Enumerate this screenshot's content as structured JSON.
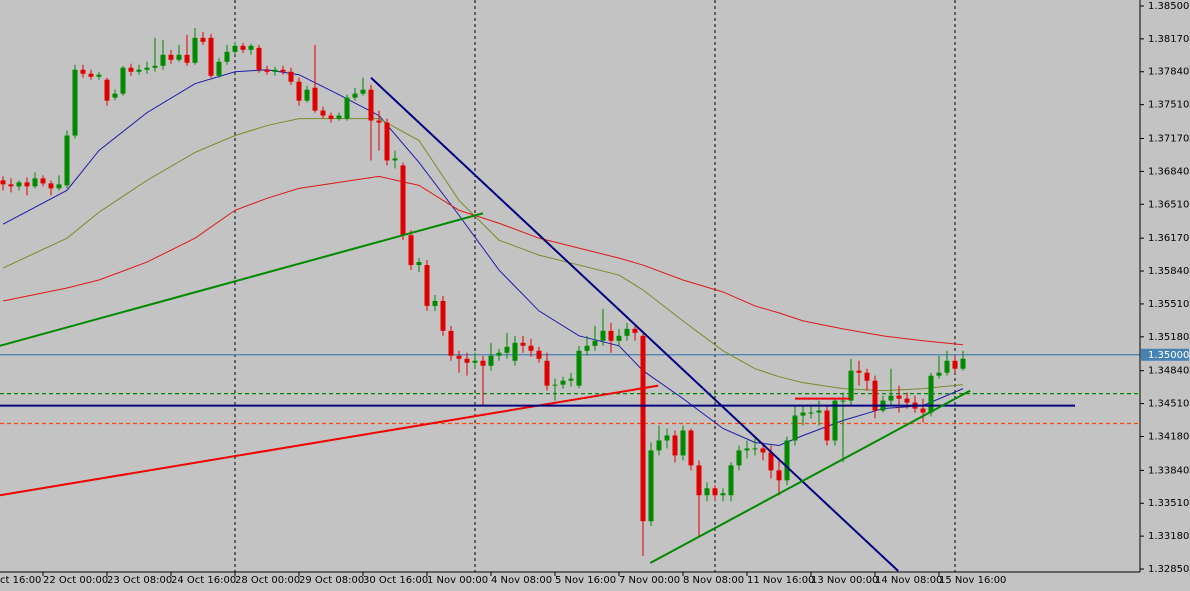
{
  "chart_data": {
    "type": "candlestick",
    "up_color": "#008a00",
    "down_color": "#e00000",
    "grid": false,
    "categories": [
      "ct 16:00",
      null,
      null,
      null,
      null,
      null,
      null,
      null,
      "22 Oct 00:00",
      null,
      null,
      null,
      null,
      null,
      null,
      null,
      "23 Oct 08:00",
      null,
      null,
      null,
      null,
      null,
      null,
      null,
      "24 Oct 16:00",
      null,
      null,
      null,
      null,
      null,
      null,
      null,
      "28 Oct 00:00",
      null,
      null,
      null,
      null,
      null,
      null,
      null,
      "29 Oct 08:00",
      null,
      null,
      null,
      null,
      null,
      null,
      null,
      "30 Oct 16:00",
      null,
      null,
      null,
      null,
      null,
      null,
      null,
      "1 Nov 00:00",
      null,
      null,
      null,
      null,
      null,
      null,
      null,
      "4 Nov 08:00",
      null,
      null,
      null,
      null,
      null,
      null,
      null,
      "5 Nov 16:00",
      null,
      null,
      null,
      null,
      null,
      null,
      null,
      "7 Nov 00:00",
      null,
      null,
      null,
      null,
      null,
      null,
      null,
      "8 Nov 08:00",
      null,
      null,
      null,
      null,
      null,
      null,
      null,
      "11 Nov 16:00",
      null,
      null,
      null,
      null,
      null,
      null,
      null,
      "13 Nov 00:00",
      null,
      null,
      null,
      null,
      null,
      null,
      null,
      "14 Nov 08:00",
      null,
      null,
      null,
      null,
      null,
      null,
      null,
      "15 Nov 16:00",
      null,
      null,
      null
    ],
    "open": [
      1.3672,
      1.3675,
      1.3671,
      1.3675,
      1.3671,
      1.3669,
      1.3673,
      1.3669,
      1.3677,
      1.3672,
      1.3667,
      1.367,
      1.372,
      1.3786,
      1.3782,
      1.3779,
      1.3776,
      1.3758,
      1.3762,
      1.3788,
      1.3784,
      1.3786,
      1.3788,
      1.379,
      1.3801,
      1.3796,
      1.3801,
      1.3793,
      1.3818,
      1.3818,
      1.378,
      1.3794,
      1.3804,
      1.381,
      1.3806,
      1.3808,
      1.3786,
      1.3784,
      1.3786,
      1.3784,
      1.3774,
      1.3755,
      1.3768,
      1.3745,
      1.374,
      1.3737,
      1.3737,
      1.3758,
      1.3762,
      1.3766,
      1.3735,
      1.3733,
      1.3695,
      1.369,
      1.362,
      1.359,
      1.359,
      1.3549,
      1.3554,
      1.3524,
      1.3499,
      1.3496,
      1.3492,
      1.3494,
      1.3489,
      1.3499,
      1.3502,
      1.3494,
      1.3512,
      1.3509,
      1.3504,
      1.3494,
      1.3469,
      1.347,
      1.3474,
      1.3469,
      1.3504,
      1.3509,
      1.3514,
      1.3524,
      1.3514,
      1.3519,
      1.3526,
      1.3519,
      1.3333,
      1.3404,
      1.3414,
      1.3419,
      1.3399,
      1.3424,
      1.3389,
      1.3359,
      1.3366,
      1.3359,
      1.3359,
      1.3389,
      1.3404,
      1.3406,
      1.3406,
      1.3402,
      1.3384,
      1.3374,
      1.3414,
      1.3439,
      1.3442,
      1.3442,
      1.3444,
      1.3414,
      1.3454,
      1.3454,
      1.3484,
      1.3482,
      1.3474,
      1.3444,
      1.3454,
      1.3459,
      1.3456,
      1.3452,
      1.3446,
      1.3442,
      1.3479,
      1.3482,
      1.3494,
      1.3486
    ],
    "high": [
      1.3679,
      1.3678,
      1.3677,
      1.3679,
      1.3677,
      1.3675,
      1.3678,
      1.3683,
      1.368,
      1.3675,
      1.368,
      1.3725,
      1.3791,
      1.3791,
      1.3786,
      1.3784,
      1.3778,
      1.3766,
      1.379,
      1.3792,
      1.3791,
      1.3794,
      1.3818,
      1.3816,
      1.3806,
      1.3811,
      1.3821,
      1.3828,
      1.3824,
      1.3822,
      1.3798,
      1.3811,
      1.3814,
      1.3813,
      1.3812,
      1.3811,
      1.379,
      1.3789,
      1.379,
      1.3788,
      1.3778,
      1.377,
      1.3811,
      1.3749,
      1.3743,
      1.3743,
      1.3761,
      1.3768,
      1.3778,
      1.3771,
      1.3745,
      1.3737,
      1.3705,
      1.3693,
      1.3625,
      1.3597,
      1.3595,
      1.356,
      1.3559,
      1.3529,
      1.3504,
      1.3502,
      1.3502,
      1.3499,
      1.3512,
      1.3506,
      1.3522,
      1.3519,
      1.3519,
      1.3516,
      1.3508,
      1.3502,
      1.3476,
      1.3478,
      1.3482,
      1.3509,
      1.3519,
      1.3529,
      1.3546,
      1.3532,
      1.3526,
      1.3532,
      1.3529,
      1.3521,
      1.3412,
      1.3429,
      1.3426,
      1.3424,
      1.3429,
      1.3426,
      1.3394,
      1.3372,
      1.3369,
      1.3366,
      1.3392,
      1.3409,
      1.3414,
      1.3416,
      1.3412,
      1.3409,
      1.3394,
      1.3418,
      1.3449,
      1.3449,
      1.3448,
      1.3454,
      1.3449,
      1.3456,
      1.3462,
      1.3496,
      1.3494,
      1.3486,
      1.3479,
      1.3459,
      1.3486,
      1.3469,
      1.3462,
      1.3459,
      1.3456,
      1.3482,
      1.3499,
      1.3504,
      1.3499,
      1.3504
    ],
    "low": [
      1.3669,
      1.3667,
      1.3669,
      1.3665,
      1.3663,
      1.3665,
      1.366,
      1.3667,
      1.3669,
      1.366,
      1.3665,
      1.3667,
      1.3717,
      1.3778,
      1.3776,
      1.3776,
      1.375,
      1.3755,
      1.376,
      1.378,
      1.3781,
      1.3782,
      1.3784,
      1.3786,
      1.3792,
      1.3794,
      1.379,
      1.3791,
      1.3811,
      1.3778,
      1.3778,
      1.3791,
      1.3801,
      1.3803,
      1.3801,
      1.3783,
      1.3781,
      1.378,
      1.3781,
      1.3771,
      1.375,
      1.3753,
      1.3743,
      1.3737,
      1.3733,
      1.3735,
      1.3735,
      1.3755,
      1.376,
      1.3695,
      1.3705,
      1.369,
      1.3687,
      1.3615,
      1.3585,
      1.3583,
      1.3544,
      1.3544,
      1.3519,
      1.3494,
      1.3482,
      1.3479,
      1.3486,
      1.3449,
      1.3484,
      1.3494,
      1.3496,
      1.3489,
      1.3502,
      1.3498,
      1.3492,
      1.3464,
      1.3454,
      1.3466,
      1.3468,
      1.3466,
      1.3499,
      1.3504,
      1.3509,
      1.3502,
      1.3509,
      1.3514,
      1.3514,
      1.3298,
      1.3328,
      1.3399,
      1.3406,
      1.3392,
      1.3394,
      1.3384,
      1.3318,
      1.3353,
      1.3353,
      1.3353,
      1.3353,
      1.3384,
      1.3396,
      1.3399,
      1.3394,
      1.3376,
      1.3359,
      1.3369,
      1.3409,
      1.3429,
      1.3436,
      1.3429,
      1.3409,
      1.3409,
      1.3392,
      1.3449,
      1.3469,
      1.3464,
      1.3436,
      1.3442,
      1.3449,
      1.3442,
      1.3446,
      1.3442,
      1.3432,
      1.3438,
      1.3476,
      1.3479,
      1.3482,
      1.3484
    ],
    "close": [
      1.3675,
      1.3671,
      1.3674,
      1.3671,
      1.3669,
      1.3673,
      1.3669,
      1.3677,
      1.3672,
      1.3667,
      1.3671,
      1.372,
      1.3786,
      1.3782,
      1.3779,
      1.3781,
      1.3755,
      1.3762,
      1.3788,
      1.3784,
      1.3786,
      1.3788,
      1.379,
      1.3801,
      1.3796,
      1.3801,
      1.3793,
      1.3818,
      1.3814,
      1.378,
      1.3794,
      1.3804,
      1.381,
      1.3806,
      1.381,
      1.3786,
      1.3784,
      1.3786,
      1.3784,
      1.3774,
      1.3755,
      1.3766,
      1.3745,
      1.374,
      1.3737,
      1.374,
      1.3758,
      1.3762,
      1.3766,
      1.3735,
      1.3733,
      1.3695,
      1.3697,
      1.362,
      1.359,
      1.3593,
      1.3549,
      1.3554,
      1.3524,
      1.3499,
      1.3496,
      1.3492,
      1.3494,
      1.3489,
      1.3499,
      1.3502,
      1.3508,
      1.3512,
      1.3509,
      1.3504,
      1.3496,
      1.3469,
      1.347,
      1.3474,
      1.3476,
      1.3504,
      1.3509,
      1.3514,
      1.3524,
      1.3514,
      1.3519,
      1.3526,
      1.3522,
      1.3333,
      1.3404,
      1.3414,
      1.3419,
      1.3399,
      1.3424,
      1.3389,
      1.3359,
      1.3366,
      1.3359,
      1.3361,
      1.3389,
      1.3404,
      1.3406,
      1.3406,
      1.3402,
      1.3384,
      1.3374,
      1.3414,
      1.3439,
      1.3442,
      1.3442,
      1.3444,
      1.3414,
      1.3454,
      1.3454,
      1.3484,
      1.3482,
      1.3474,
      1.3444,
      1.3454,
      1.3459,
      1.3456,
      1.3452,
      1.3446,
      1.3442,
      1.3479,
      1.3482,
      1.3494,
      1.3486,
      1.3496
    ],
    "moving_averages": [
      {
        "color": "#1c1ca8",
        "x": [
          3,
          11,
          15,
          21,
          27,
          32,
          36,
          40,
          45,
          50,
          55,
          60,
          65,
          70,
          75,
          80,
          83,
          88,
          93,
          97,
          100,
          103,
          108,
          113,
          118,
          123
        ],
        "values": [
          1.3631,
          1.3665,
          1.3705,
          1.3743,
          1.3772,
          1.3784,
          1.3786,
          1.3781,
          1.3761,
          1.374,
          1.3693,
          1.364,
          1.3585,
          1.3544,
          1.3519,
          1.3509,
          1.3484,
          1.3456,
          1.3426,
          1.3412,
          1.3409,
          1.3419,
          1.3434,
          1.3446,
          1.3449,
          1.3466
        ]
      },
      {
        "color": "#7a8a2a",
        "x": [
          3,
          11,
          15,
          21,
          27,
          32,
          36,
          40,
          45,
          50,
          55,
          60,
          65,
          70,
          75,
          80,
          83,
          88,
          93,
          97,
          100,
          103,
          108,
          113,
          118,
          123
        ],
        "values": [
          1.3587,
          1.3617,
          1.3643,
          1.3675,
          1.3703,
          1.372,
          1.373,
          1.3737,
          1.3737,
          1.3737,
          1.3715,
          1.3655,
          1.3615,
          1.36,
          1.359,
          1.358,
          1.3565,
          1.3534,
          1.3504,
          1.3486,
          1.3478,
          1.3472,
          1.3466,
          1.3464,
          1.3466,
          1.347
        ]
      },
      {
        "color": "#e01818",
        "x": [
          3,
          11,
          15,
          21,
          27,
          32,
          36,
          40,
          45,
          50,
          55,
          60,
          65,
          70,
          75,
          80,
          83,
          88,
          93,
          97,
          100,
          103,
          108,
          113,
          118,
          123
        ],
        "values": [
          1.3554,
          1.3567,
          1.3575,
          1.3593,
          1.3617,
          1.3645,
          1.3657,
          1.3667,
          1.3673,
          1.3679,
          1.367,
          1.3645,
          1.3632,
          1.3617,
          1.3607,
          1.3597,
          1.359,
          1.3575,
          1.3563,
          1.3549,
          1.3542,
          1.3534,
          1.3526,
          1.3519,
          1.3514,
          1.351
        ]
      }
    ],
    "trendlines": [
      {
        "color": "#00007f",
        "x": [
          49,
          114.9
        ],
        "values": [
          1.3778,
          1.3283
        ]
      },
      {
        "color": "#008a00",
        "x": [
          2.6,
          63
        ],
        "values": [
          1.3509,
          1.3642
        ]
      },
      {
        "color": "#f00000",
        "x": [
          2.6,
          84.9
        ],
        "values": [
          1.3359,
          1.3469
        ]
      },
      {
        "color": "#00007f",
        "x": [
          2.6,
          137
        ],
        "values": [
          1.3449,
          1.3449
        ]
      },
      {
        "color": "#f00000",
        "x": [
          102,
          108.9
        ],
        "values": [
          1.3456,
          1.3456
        ]
      },
      {
        "color": "#008a00",
        "x": [
          83.9,
          123.9
        ],
        "values": [
          1.3291,
          1.3464
        ]
      }
    ],
    "levels": [
      {
        "value": 1.35,
        "label": "1.35000",
        "color": "#4682b4"
      },
      {
        "value": 1.3461,
        "color": "#008a00",
        "dashed": true
      },
      {
        "value": 1.3431,
        "color": "#ff4500",
        "dashed": true
      }
    ],
    "ylim": [
      1.3282,
      1.3856
    ],
    "yticks": [
      {
        "value": 1.385,
        "label": "1.38500"
      },
      {
        "value": 1.3817,
        "label": "1.38170"
      },
      {
        "value": 1.3784,
        "label": "1.37840"
      },
      {
        "value": 1.3751,
        "label": "1.37510"
      },
      {
        "value": 1.3717,
        "label": "1.37170"
      },
      {
        "value": 1.3684,
        "label": "1.36840"
      },
      {
        "value": 1.3651,
        "label": "1.36510"
      },
      {
        "value": 1.3617,
        "label": "1.36170"
      },
      {
        "value": 1.3584,
        "label": "1.35840"
      },
      {
        "value": 1.3551,
        "label": "1.35510"
      },
      {
        "value": 1.3518,
        "label": "1.35180"
      },
      {
        "value": 1.3484,
        "label": "1.34840"
      },
      {
        "value": 1.3451,
        "label": "1.34510"
      },
      {
        "value": 1.3418,
        "label": "1.34180"
      },
      {
        "value": 1.3384,
        "label": "1.33840"
      },
      {
        "value": 1.3351,
        "label": "1.33510"
      },
      {
        "value": 1.3318,
        "label": "1.33180"
      },
      {
        "value": 1.3285,
        "label": "1.32850"
      }
    ]
  }
}
